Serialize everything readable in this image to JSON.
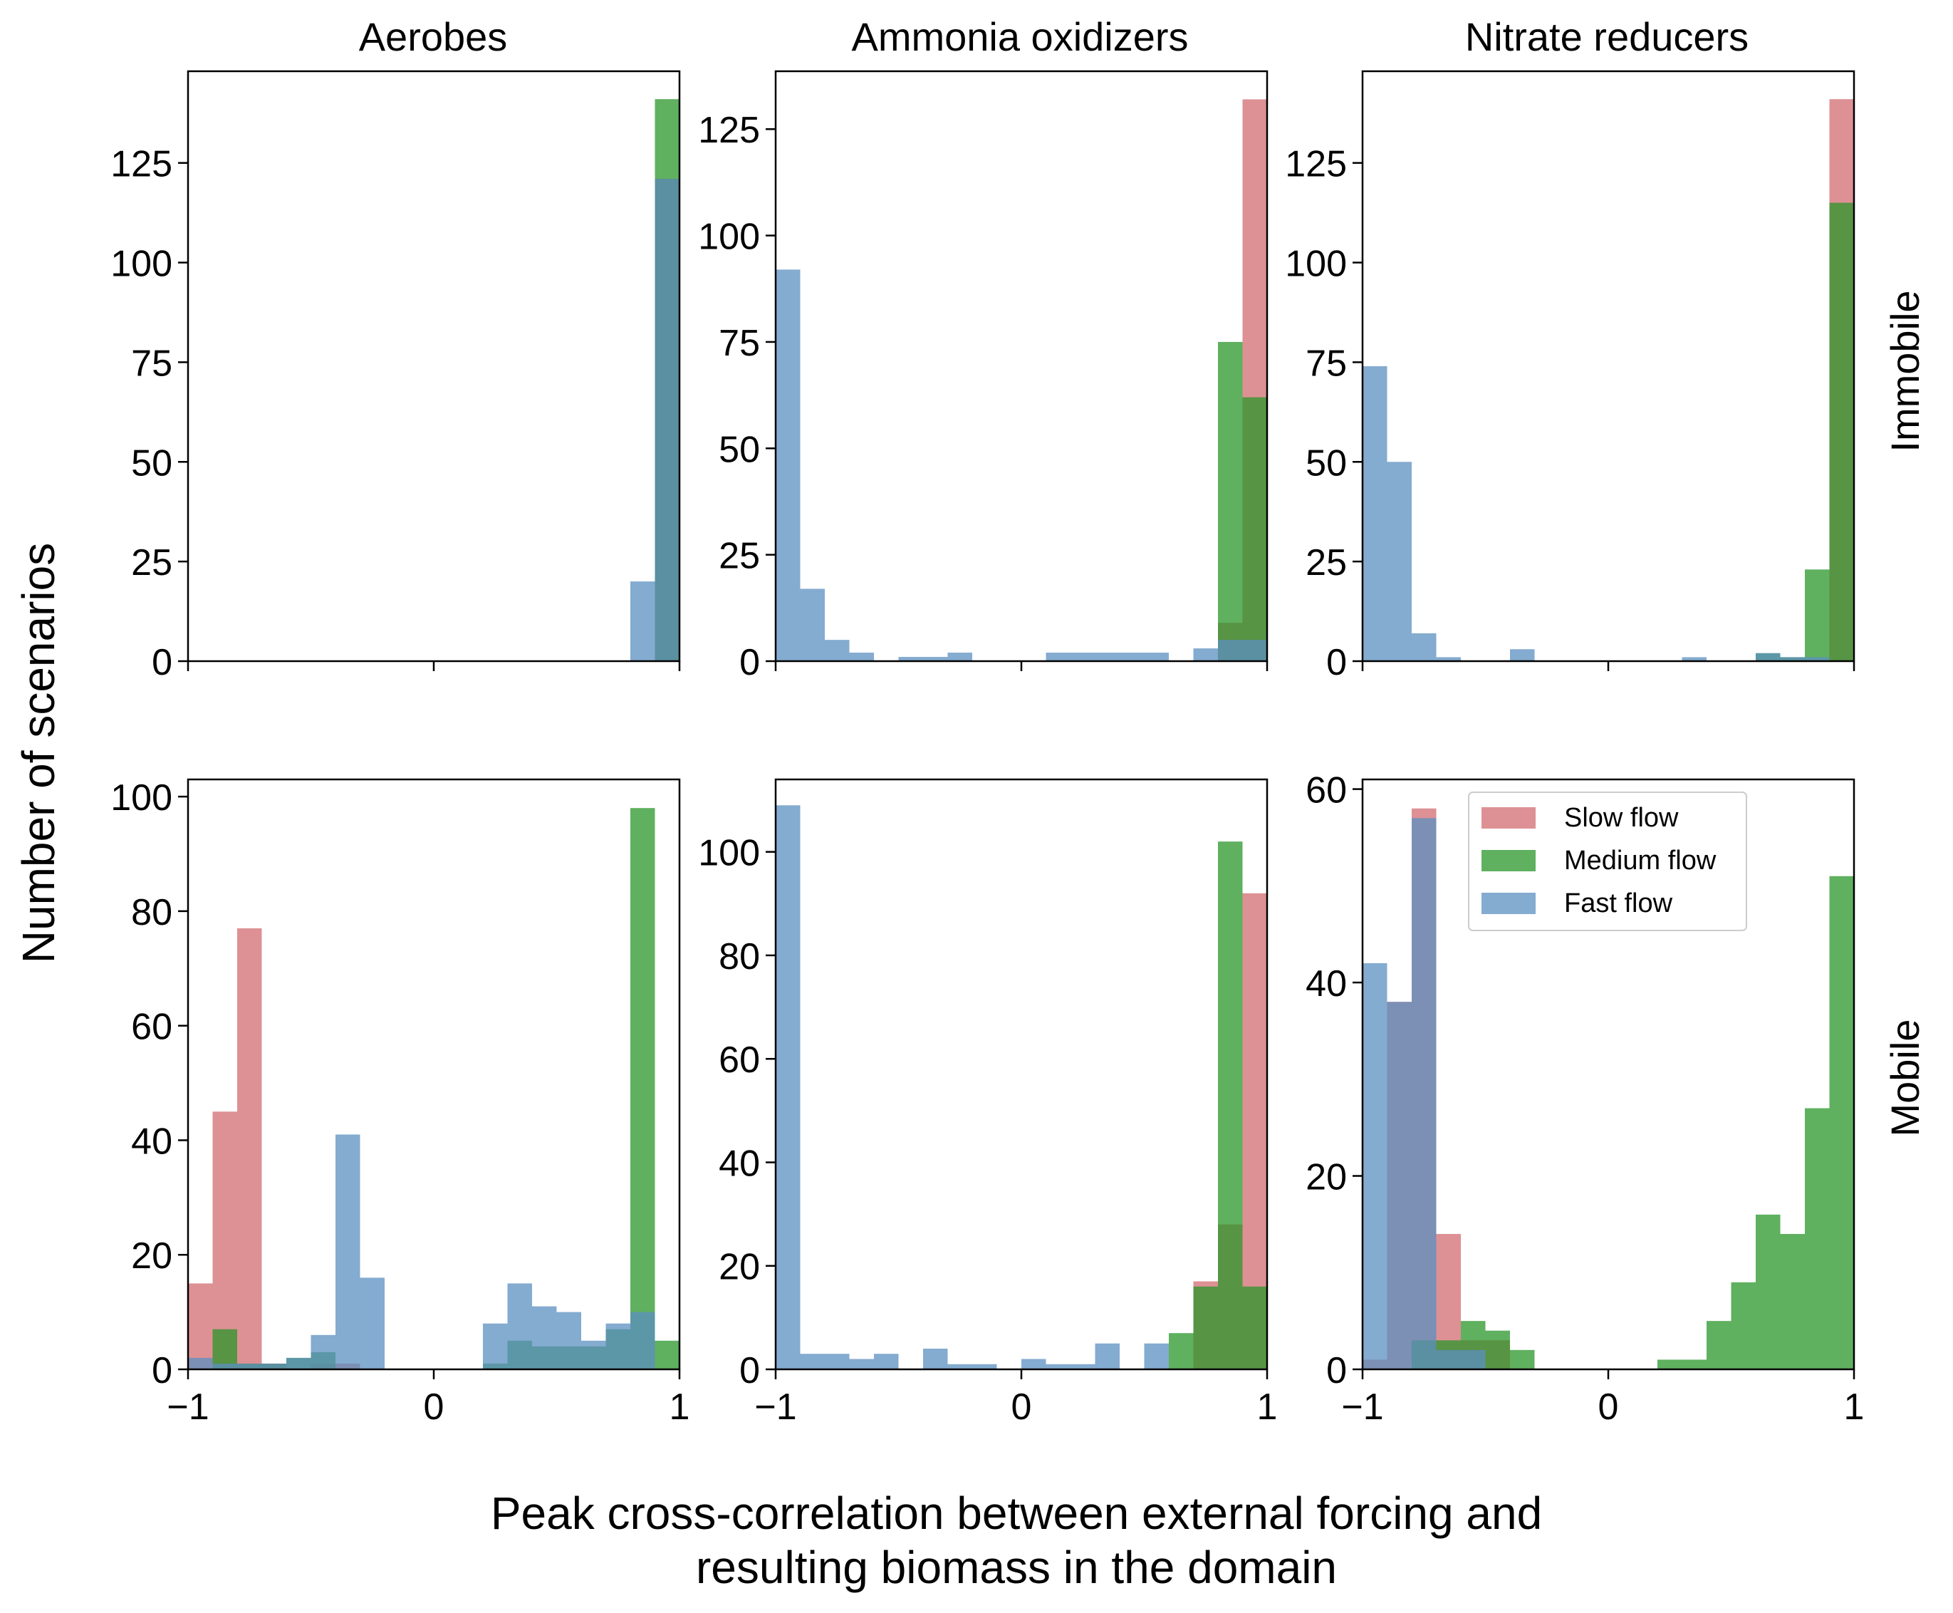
{
  "figure": {
    "xlabel_line1": "Peak cross-correlation between external forcing and",
    "xlabel_line2": "resulting biomass in the domain",
    "ylabel": "Number of scenarios",
    "column_titles": [
      "Aerobes",
      "Ammonia oxidizers",
      "Nitrate reducers"
    ],
    "row_labels": [
      "Immobile",
      "Mobile"
    ]
  },
  "legend": {
    "placement": "upper-right of bottom-right panel",
    "entries": [
      {
        "label": "Slow flow",
        "color": "#d26c70"
      },
      {
        "label": "Medium flow",
        "color": "#2a962a"
      },
      {
        "label": "Fast flow",
        "color": "#5b8fc0"
      }
    ]
  },
  "chart_data": {
    "type": "bar",
    "subtype": "overlaid histograms (alpha 0.75)",
    "bin_edges_from": -1,
    "bin_width": 0.1,
    "bins": 20,
    "x_ticks": [
      "−1",
      "0",
      "1"
    ],
    "xlim": [
      -1,
      1
    ],
    "series_names": [
      "Slow flow",
      "Medium flow",
      "Fast flow"
    ],
    "panels": [
      {
        "row": "Immobile",
        "column": "Aerobes",
        "ylim": [
          0,
          148
        ],
        "y_ticks": [
          0,
          25,
          50,
          75,
          100,
          125
        ],
        "series": [
          {
            "name": "Slow flow",
            "values": [
              0,
              0,
              0,
              0,
              0,
              0,
              0,
              0,
              0,
              0,
              0,
              0,
              0,
              0,
              0,
              0,
              0,
              0,
              0,
              121
            ]
          },
          {
            "name": "Medium flow",
            "values": [
              0,
              0,
              0,
              0,
              0,
              0,
              0,
              0,
              0,
              0,
              0,
              0,
              0,
              0,
              0,
              0,
              0,
              0,
              0,
              141
            ]
          },
          {
            "name": "Fast flow",
            "values": [
              0,
              0,
              0,
              0,
              0,
              0,
              0,
              0,
              0,
              0,
              0,
              0,
              0,
              0,
              0,
              0,
              0,
              0,
              20,
              121
            ]
          }
        ]
      },
      {
        "row": "Immobile",
        "column": "Ammonia oxidizers",
        "ylim": [
          0,
          138.6
        ],
        "y_ticks": [
          0,
          25,
          50,
          75,
          100,
          125
        ],
        "series": [
          {
            "name": "Slow flow",
            "values": [
              0,
              0,
              0,
              0,
              0,
              0,
              0,
              0,
              0,
              0,
              0,
              0,
              0,
              0,
              0,
              0,
              0,
              0,
              9,
              132
            ]
          },
          {
            "name": "Medium flow",
            "values": [
              0,
              0,
              0,
              0,
              0,
              0,
              0,
              0,
              0,
              0,
              0,
              0,
              0,
              0,
              0,
              0,
              0,
              0,
              75,
              62
            ]
          },
          {
            "name": "Fast flow",
            "values": [
              92,
              17,
              5,
              2,
              0,
              1,
              1,
              2,
              0,
              0,
              0,
              2,
              2,
              2,
              2,
              2,
              0,
              3,
              5,
              5
            ]
          }
        ]
      },
      {
        "row": "Immobile",
        "column": "Nitrate reducers",
        "ylim": [
          0,
          148
        ],
        "y_ticks": [
          0,
          25,
          50,
          75,
          100,
          125
        ],
        "series": [
          {
            "name": "Slow flow",
            "values": [
              0,
              0,
              0,
              0,
              0,
              0,
              0,
              0,
              0,
              0,
              0,
              0,
              0,
              0,
              0,
              0,
              0,
              0,
              0,
              141
            ]
          },
          {
            "name": "Medium flow",
            "values": [
              0,
              0,
              0,
              0,
              0,
              0,
              0,
              0,
              0,
              0,
              0,
              0,
              0,
              0,
              0,
              0,
              2,
              1,
              23,
              115
            ]
          },
          {
            "name": "Fast flow",
            "values": [
              74,
              50,
              7,
              1,
              0,
              0,
              3,
              0,
              0,
              0,
              0,
              0,
              0,
              1,
              0,
              0,
              2,
              1,
              1,
              0
            ]
          }
        ]
      },
      {
        "row": "Mobile",
        "column": "Aerobes",
        "ylim": [
          0,
          103
        ],
        "y_ticks": [
          0,
          20,
          40,
          60,
          80,
          100
        ],
        "series": [
          {
            "name": "Slow flow",
            "values": [
              15,
              45,
              77,
              1,
              0,
              1,
              1,
              0,
              0,
              0,
              0,
              0,
              0,
              0,
              0,
              0,
              0,
              0,
              0,
              0
            ]
          },
          {
            "name": "Medium flow",
            "values": [
              0,
              7,
              1,
              1,
              2,
              3,
              0,
              0,
              0,
              0,
              0,
              0,
              1,
              5,
              4,
              4,
              4,
              7,
              98,
              5
            ]
          },
          {
            "name": "Fast flow",
            "values": [
              2,
              1,
              1,
              1,
              2,
              6,
              41,
              16,
              0,
              0,
              0,
              0,
              8,
              15,
              11,
              10,
              5,
              8,
              10,
              0
            ]
          }
        ]
      },
      {
        "row": "Mobile",
        "column": "Ammonia oxidizers",
        "ylim": [
          0,
          114
        ],
        "y_ticks": [
          0,
          20,
          40,
          60,
          80,
          100
        ],
        "series": [
          {
            "name": "Slow flow",
            "values": [
              0,
              0,
              0,
              0,
              0,
              0,
              0,
              0,
              0,
              0,
              0,
              0,
              0,
              0,
              0,
              0,
              0,
              17,
              28,
              92
            ]
          },
          {
            "name": "Medium flow",
            "values": [
              0,
              0,
              0,
              0,
              0,
              0,
              0,
              0,
              0,
              0,
              0,
              0,
              0,
              0,
              0,
              0,
              7,
              16,
              102,
              16
            ]
          },
          {
            "name": "Fast flow",
            "values": [
              109,
              3,
              3,
              2,
              3,
              0,
              4,
              1,
              1,
              0,
              2,
              1,
              1,
              5,
              0,
              5,
              0,
              0,
              0,
              0
            ]
          }
        ]
      },
      {
        "row": "Mobile",
        "column": "Nitrate reducers",
        "ylim": [
          0,
          61
        ],
        "y_ticks": [
          0,
          20,
          40,
          60
        ],
        "series": [
          {
            "name": "Slow flow",
            "values": [
              1,
              38,
              58,
              14,
              3,
              3,
              0,
              0,
              0,
              0,
              0,
              0,
              0,
              0,
              0,
              0,
              0,
              0,
              0,
              0
            ]
          },
          {
            "name": "Medium flow",
            "values": [
              0,
              0,
              3,
              3,
              5,
              4,
              2,
              0,
              0,
              0,
              0,
              0,
              1,
              1,
              5,
              9,
              16,
              14,
              27,
              51
            ]
          },
          {
            "name": "Fast flow",
            "values": [
              42,
              38,
              57,
              2,
              2,
              0,
              0,
              0,
              0,
              0,
              0,
              0,
              0,
              0,
              0,
              0,
              0,
              0,
              0,
              0
            ]
          }
        ]
      }
    ]
  }
}
